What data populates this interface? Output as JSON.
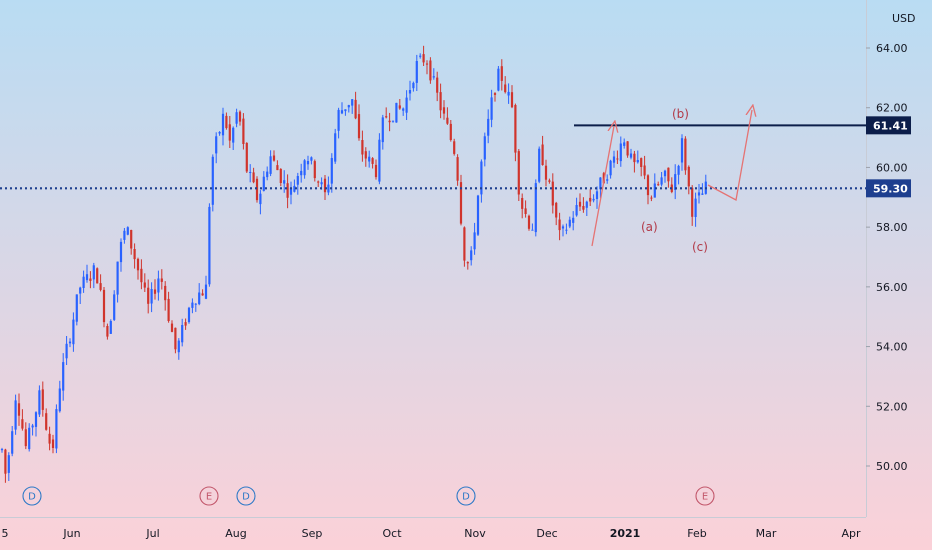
{
  "chart_data": {
    "type": "candlestick",
    "currency": "USD",
    "y_ticks": [
      "64.00",
      "62.00",
      "60.00",
      "58.00",
      "56.00",
      "54.00",
      "52.00",
      "50.00"
    ],
    "ylim": [
      48.4,
      65.8
    ],
    "x_ticks": [
      "5",
      "Jun",
      "Jul",
      "Aug",
      "Sep",
      "Oct",
      "Nov",
      "Dec",
      "2021",
      "Feb",
      "Mar",
      "Apr"
    ],
    "x_tick_bold": "2021",
    "grid": false,
    "background_gradient": {
      "top": "#b9dcf3",
      "bottom": "#fbd1d8"
    },
    "up_color": "#2962ff",
    "down_color": "#d0342c",
    "resistance_level": {
      "value": 61.41,
      "label": "61.41",
      "color": "#0c1e4a"
    },
    "last_price": {
      "value": 59.3,
      "label": "59.30",
      "color": "#1e3f8f"
    },
    "wave_labels": [
      "(a)",
      "(b)",
      "(c)"
    ],
    "events": [
      {
        "letter": "D",
        "color": "#2e79c7"
      },
      {
        "letter": "E",
        "color": "#c2576b"
      },
      {
        "letter": "D",
        "color": "#2e79c7"
      },
      {
        "letter": "D",
        "color": "#2e79c7"
      },
      {
        "letter": "E",
        "color": "#c2576b"
      }
    ],
    "anchors": [
      [
        0,
        51.0
      ],
      [
        6,
        49.6
      ],
      [
        16,
        52.5
      ],
      [
        26,
        50.6
      ],
      [
        40,
        52.4
      ],
      [
        52,
        50.4
      ],
      [
        60,
        52.8
      ],
      [
        66,
        53.8
      ],
      [
        80,
        56.0
      ],
      [
        96,
        56.6
      ],
      [
        108,
        54.3
      ],
      [
        118,
        57.0
      ],
      [
        126,
        58.0
      ],
      [
        138,
        56.6
      ],
      [
        148,
        55.3
      ],
      [
        160,
        56.5
      ],
      [
        176,
        53.8
      ],
      [
        192,
        55.6
      ],
      [
        208,
        56.0
      ],
      [
        210,
        60.0
      ],
      [
        224,
        61.8
      ],
      [
        230,
        60.8
      ],
      [
        238,
        62.0
      ],
      [
        246,
        60.0
      ],
      [
        258,
        58.9
      ],
      [
        270,
        60.4
      ],
      [
        290,
        59.1
      ],
      [
        306,
        60.5
      ],
      [
        326,
        59.0
      ],
      [
        338,
        61.8
      ],
      [
        352,
        62.3
      ],
      [
        360,
        60.6
      ],
      [
        376,
        59.9
      ],
      [
        384,
        61.7
      ],
      [
        404,
        62.0
      ],
      [
        416,
        63.4
      ],
      [
        426,
        63.7
      ],
      [
        438,
        62.3
      ],
      [
        456,
        60.4
      ],
      [
        464,
        57.1
      ],
      [
        470,
        56.6
      ],
      [
        482,
        60.3
      ],
      [
        494,
        62.6
      ],
      [
        500,
        63.2
      ],
      [
        512,
        62.0
      ],
      [
        520,
        58.9
      ],
      [
        532,
        57.9
      ],
      [
        540,
        60.7
      ],
      [
        552,
        58.9
      ],
      [
        560,
        57.6
      ],
      [
        576,
        58.6
      ],
      [
        590,
        58.9
      ],
      [
        600,
        59.4
      ],
      [
        614,
        60.3
      ],
      [
        624,
        61.0
      ],
      [
        632,
        60.1
      ],
      [
        642,
        59.9
      ],
      [
        650,
        59.0
      ],
      [
        664,
        59.7
      ],
      [
        672,
        59.3
      ],
      [
        682,
        60.8
      ],
      [
        692,
        58.6
      ],
      [
        700,
        59.0
      ],
      [
        706,
        59.3
      ]
    ]
  }
}
